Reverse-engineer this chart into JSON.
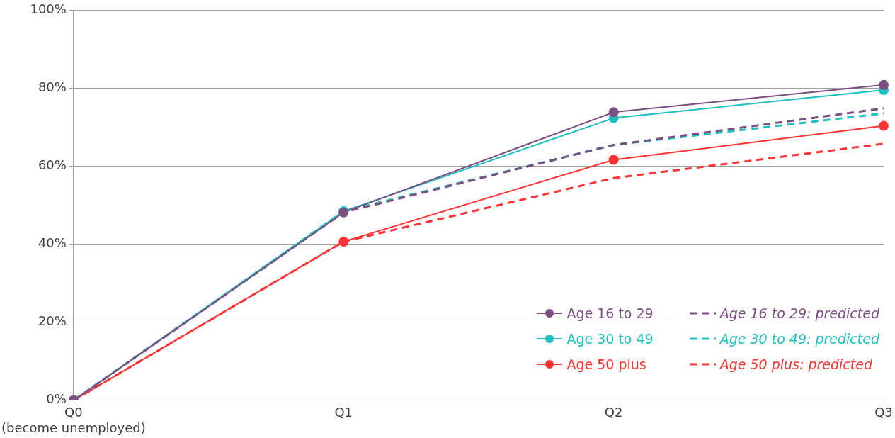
{
  "chart_data": {
    "type": "line",
    "categories": [
      "Q0\n(become unemployed)",
      "Q1",
      "Q2",
      "Q3"
    ],
    "series": [
      {
        "name": "Age 16 to 29",
        "color": "#7b4f80",
        "values": [
          0,
          48.2,
          73.9,
          80.9
        ],
        "marker": "circle",
        "line_style": "solid"
      },
      {
        "name": "Age 30 to 49",
        "color": "#1fbfbf",
        "values": [
          0,
          48.5,
          72.4,
          79.6
        ],
        "marker": "circle",
        "line_style": "solid"
      },
      {
        "name": "Age 50 plus",
        "color": "#ff3333",
        "values": [
          0,
          40.7,
          61.7,
          70.4
        ],
        "marker": "circle",
        "line_style": "solid"
      },
      {
        "name": "Age 16 to 29: predicted",
        "color": "#7b4f80",
        "values": [
          0,
          48.2,
          65.5,
          74.9
        ],
        "marker": "none",
        "line_style": "dashed"
      },
      {
        "name": "Age 30 to 49: predicted",
        "color": "#1fbfbf",
        "values": [
          0,
          48.5,
          65.5,
          73.6
        ],
        "marker": "none",
        "line_style": "dashed"
      },
      {
        "name": "Age 50 plus: predicted",
        "color": "#ff3333",
        "values": [
          0,
          40.7,
          57.0,
          65.8
        ],
        "marker": "none",
        "line_style": "dashed"
      }
    ],
    "ylim": [
      0,
      100
    ],
    "yticks": [
      {
        "value": 0,
        "label": "0%"
      },
      {
        "value": 20,
        "label": "20%"
      },
      {
        "value": 40,
        "label": "40%"
      },
      {
        "value": 60,
        "label": "60%"
      },
      {
        "value": 80,
        "label": "80%"
      },
      {
        "value": 100,
        "label": "100%"
      }
    ],
    "grid": "y",
    "legend": "bottom right"
  }
}
